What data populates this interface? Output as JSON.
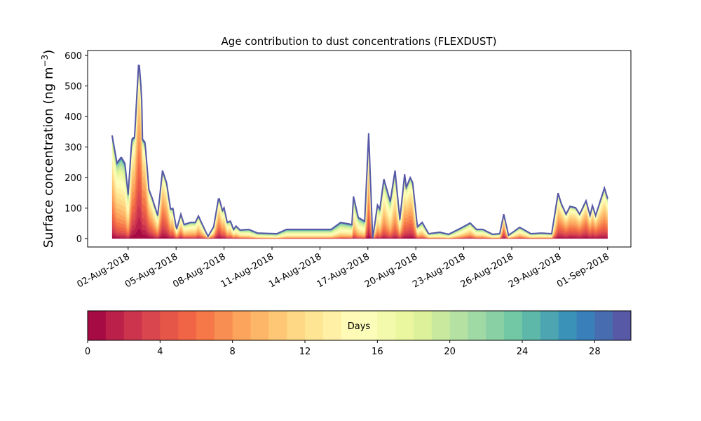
{
  "chart_data": {
    "type": "area",
    "title": "Age contribution to dust concentrations (FLEXDUST)",
    "ylabel": {
      "main": "Surface concentration (ng m",
      "sup": "−3",
      "end": ")"
    },
    "xlabel": "",
    "ylim": [
      -30,
      620
    ],
    "yticks": [
      0,
      100,
      200,
      300,
      400,
      500,
      600
    ],
    "x_units": "days since 01-Aug-2018",
    "xlim": [
      -1.0,
      32.5
    ],
    "xticks": [
      1,
      4,
      7,
      10,
      13,
      16,
      19,
      22,
      25,
      28,
      31
    ],
    "xtick_labels": [
      "02-Aug-2018",
      "05-Aug-2018",
      "08-Aug-2018",
      "11-Aug-2018",
      "14-Aug-2018",
      "17-Aug-2018",
      "20-Aug-2018",
      "23-Aug-2018",
      "26-Aug-2018",
      "29-Aug-2018",
      "01-Sep-2018"
    ],
    "total": {
      "x": [
        0,
        0.3,
        0.57,
        0.8,
        1.0,
        1.23,
        1.4,
        1.67,
        1.84,
        1.9,
        2.06,
        2.3,
        2.5,
        2.85,
        3.15,
        3.4,
        3.65,
        3.8,
        4.03,
        4.3,
        4.5,
        4.9,
        5.2,
        5.4,
        5.6,
        6.0,
        6.35,
        6.67,
        6.9,
        7.0,
        7.2,
        7.4,
        7.6,
        7.75,
        8.0,
        8.55,
        9.1,
        10.3,
        10.9,
        11.6,
        12.9,
        13.7,
        14.3,
        15.0,
        15.1,
        15.4,
        15.8,
        16.05,
        16.3,
        16.6,
        16.75,
        17.0,
        17.4,
        17.7,
        18.0,
        18.3,
        18.4,
        18.65,
        18.8,
        19.1,
        19.4,
        19.8,
        20.5,
        21.05,
        21.8,
        22.4,
        22.8,
        23.2,
        23.8,
        24.25,
        24.5,
        24.8,
        25.5,
        26.2,
        26.85,
        27.5,
        27.9,
        28.1,
        28.4,
        28.65,
        29.0,
        29.25,
        29.65,
        29.9,
        30.05,
        30.25,
        30.8,
        31.0
      ],
      "y": [
        338,
        248,
        267,
        246,
        145,
        326,
        333,
        586,
        476,
        326,
        315,
        161,
        133,
        76,
        223,
        184,
        97,
        99,
        30,
        80,
        46,
        53,
        53,
        74,
        51,
        7,
        39,
        136,
        92,
        101,
        53,
        57,
        30,
        41,
        28,
        30,
        18,
        16,
        30,
        30,
        30,
        30,
        53,
        46,
        138,
        69,
        57,
        345,
        0,
        110,
        97,
        195,
        122,
        223,
        62,
        211,
        168,
        200,
        184,
        39,
        53,
        16,
        21,
        14,
        34,
        51,
        30,
        30,
        14,
        16,
        80,
        11,
        37,
        16,
        18,
        16,
        149,
        115,
        80,
        106,
        101,
        80,
        124,
        76,
        108,
        76,
        166,
        131
      ],
      "mean_age_days": [
        9,
        11,
        12,
        12,
        13,
        8,
        7,
        5,
        6,
        7,
        7,
        8,
        9,
        11,
        7,
        8,
        10,
        10,
        12,
        10,
        12,
        12,
        12,
        11,
        12,
        13,
        12,
        8,
        10,
        10,
        12,
        12,
        13,
        13,
        14,
        15,
        16,
        17,
        16,
        16,
        16,
        16,
        15,
        15,
        13,
        14,
        15,
        8,
        14,
        12,
        13,
        11,
        13,
        11,
        12,
        10,
        9,
        9,
        9,
        13,
        13,
        15,
        16,
        16,
        14,
        12,
        14,
        14,
        15,
        15,
        7,
        15,
        13,
        15,
        15,
        15,
        9,
        8,
        8,
        8,
        8,
        8,
        7,
        8,
        8,
        8,
        9,
        9
      ]
    },
    "colorbar": {
      "label": "Days",
      "range": [
        0,
        30
      ],
      "n_bins": 30,
      "ticks": [
        0,
        4,
        8,
        12,
        16,
        20,
        24,
        28
      ],
      "tick_labels": [
        "0",
        "4",
        "8",
        "12",
        "16",
        "20",
        "24",
        "28"
      ],
      "cmap_anchors": [
        "#9e0142",
        "#d53e4f",
        "#f46d43",
        "#fdae61",
        "#fee08b",
        "#ffffbf",
        "#e6f598",
        "#abdda4",
        "#66c2a5",
        "#3288bd",
        "#5e4fa2"
      ]
    }
  }
}
